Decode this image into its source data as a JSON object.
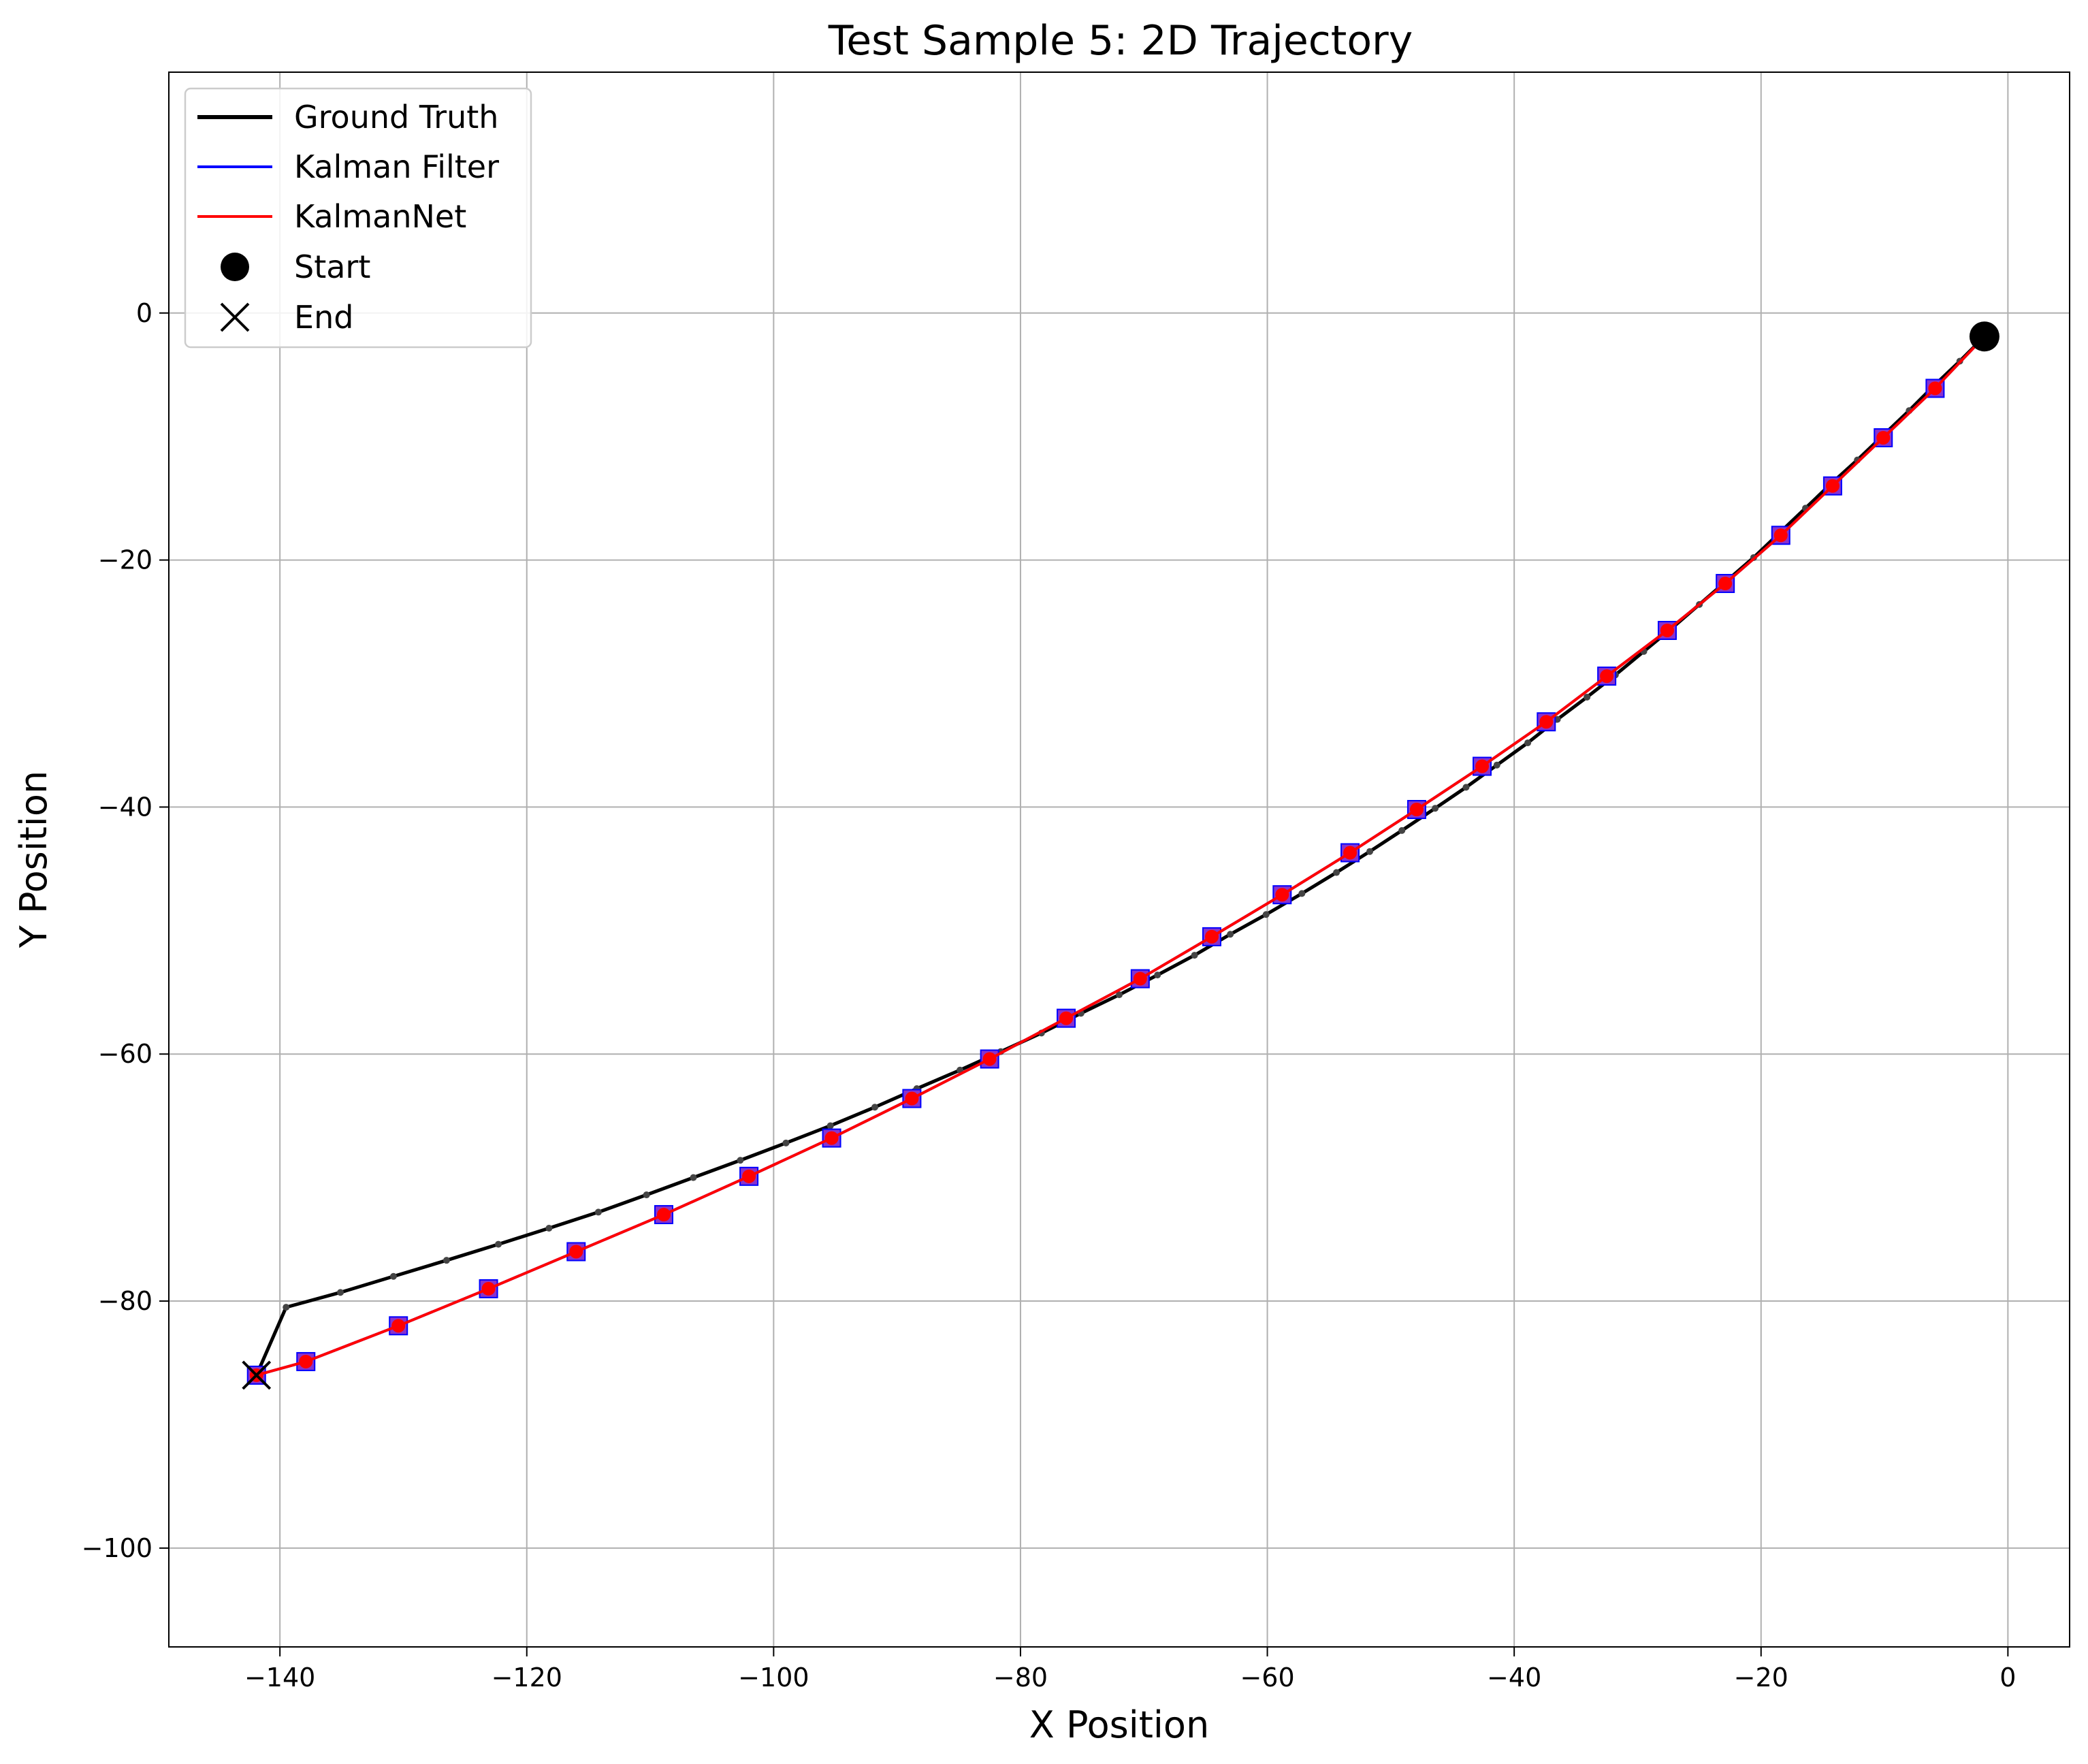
{
  "chart_data": {
    "type": "line",
    "title": "Test Sample 5: 2D Trajectory",
    "xlabel": "X Position",
    "ylabel": "Y Position",
    "xlim": [
      -149,
      5
    ],
    "ylim": [
      -108,
      19.5
    ],
    "xticks": [
      -140,
      -120,
      -100,
      -80,
      -60,
      -40,
      -20,
      0
    ],
    "yticks": [
      -100,
      -80,
      -60,
      -40,
      -20,
      0
    ],
    "xtick_labels": [
      "−140",
      "−120",
      "−100",
      "−80",
      "−60",
      "−40",
      "−20",
      "0"
    ],
    "ytick_labels": [
      "−100",
      "−80",
      "−60",
      "−40",
      "−20",
      "0"
    ],
    "grid": true,
    "legend_position": "upper-left",
    "series": [
      {
        "name": "Ground Truth",
        "color": "#000000",
        "marker": "small-dot",
        "x": [
          -1.9,
          -3.9,
          -6.0,
          -8.0,
          -10.1,
          -12.2,
          -14.3,
          -16.4,
          -18.5,
          -20.6,
          -22.8,
          -25.0,
          -27.2,
          -29.5,
          -31.8,
          -34.1,
          -36.5,
          -38.9,
          -41.4,
          -43.9,
          -46.4,
          -49.1,
          -51.7,
          -54.4,
          -57.2,
          -60.1,
          -63.0,
          -65.9,
          -68.9,
          -72.0,
          -75.1,
          -78.3,
          -81.6,
          -84.9,
          -88.4,
          -91.8,
          -95.4,
          -99.0,
          -102.7,
          -106.5,
          -110.3,
          -114.2,
          -118.2,
          -122.3,
          -126.5,
          -130.8,
          -135.1,
          -139.5,
          -141.9
        ],
        "y": [
          -1.9,
          -3.9,
          -5.9,
          -7.9,
          -9.9,
          -11.9,
          -13.8,
          -15.8,
          -17.8,
          -19.8,
          -21.7,
          -23.6,
          -25.5,
          -27.4,
          -29.3,
          -31.1,
          -32.9,
          -34.8,
          -36.6,
          -38.4,
          -40.1,
          -41.9,
          -43.6,
          -45.3,
          -47.0,
          -48.7,
          -50.3,
          -52.0,
          -53.6,
          -55.2,
          -56.7,
          -58.3,
          -59.8,
          -61.3,
          -62.8,
          -64.3,
          -65.8,
          -67.2,
          -68.6,
          -70.0,
          -71.4,
          -72.8,
          -74.1,
          -75.4,
          -76.7,
          -78.0,
          -79.3,
          -80.5,
          -86.0
        ]
      },
      {
        "name": "Kalman Filter",
        "color": "#0000ff",
        "marker": "square",
        "x": [
          -1.9,
          -5.9,
          -10.1,
          -14.2,
          -18.4,
          -22.9,
          -27.6,
          -32.5,
          -37.4,
          -42.6,
          -47.9,
          -53.3,
          -58.8,
          -64.5,
          -70.3,
          -76.3,
          -82.5,
          -88.8,
          -95.3,
          -102.0,
          -108.9,
          -116.0,
          -123.1,
          -130.4,
          -137.9,
          -141.9
        ],
        "y": [
          -1.9,
          -6.1,
          -10.1,
          -14.0,
          -18.0,
          -21.9,
          -25.7,
          -29.4,
          -33.1,
          -36.7,
          -40.2,
          -43.7,
          -47.1,
          -50.5,
          -53.9,
          -57.1,
          -60.4,
          -63.6,
          -66.8,
          -69.9,
          -73.0,
          -76.0,
          -79.0,
          -82.0,
          -84.9,
          -86.0
        ]
      },
      {
        "name": "KalmanNet",
        "color": "#ff0000",
        "marker": "filled-circle",
        "x": [
          -1.9,
          -5.9,
          -10.1,
          -14.2,
          -18.4,
          -22.9,
          -27.6,
          -32.5,
          -37.4,
          -42.6,
          -47.9,
          -53.3,
          -58.8,
          -64.5,
          -70.3,
          -76.3,
          -82.5,
          -88.8,
          -95.3,
          -102.0,
          -108.9,
          -116.0,
          -123.1,
          -130.4,
          -137.9,
          -141.9
        ],
        "y": [
          -1.9,
          -6.1,
          -10.1,
          -14.0,
          -18.0,
          -21.9,
          -25.7,
          -29.4,
          -33.1,
          -36.7,
          -40.2,
          -43.7,
          -47.1,
          -50.5,
          -53.9,
          -57.1,
          -60.4,
          -63.6,
          -66.8,
          -69.9,
          -73.0,
          -76.0,
          -79.0,
          -82.0,
          -84.9,
          -86.0
        ]
      }
    ],
    "start_point": {
      "name": "Start",
      "x": -1.9,
      "y": -1.9,
      "color": "#000000"
    },
    "end_point": {
      "name": "End",
      "x": -141.9,
      "y": -86.0,
      "color": "#000000"
    }
  }
}
